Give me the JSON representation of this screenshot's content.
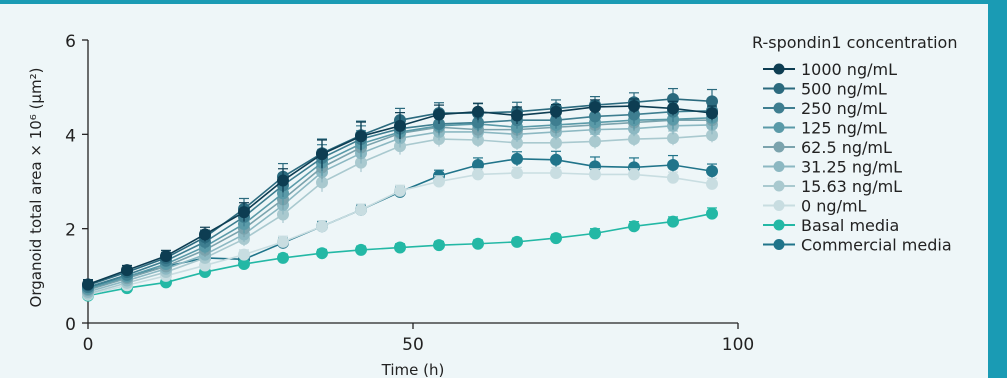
{
  "colors": {
    "background": "#eef6f8",
    "accent_bar": "#1a9bb4",
    "axis": "#222222",
    "errorbar": "#333333"
  },
  "chart_data": {
    "type": "line",
    "title": "",
    "xlabel": "Time (h)",
    "ylabel": "Organoid total area × 10⁶ (µm²)",
    "xlim": [
      0,
      100
    ],
    "ylim": [
      0,
      6
    ],
    "xticks": [
      0,
      50,
      100
    ],
    "yticks": [
      0,
      2,
      4,
      6
    ],
    "grid": false,
    "legend_title": "R-spondin1 concentration",
    "legend_position": "right",
    "x": [
      0,
      6,
      12,
      18,
      24,
      30,
      36,
      42,
      48,
      54,
      60,
      66,
      72,
      78,
      84,
      90,
      96
    ],
    "series": [
      {
        "name": "1000 ng/mL",
        "color": "#0d3d52",
        "values": [
          0.82,
          1.12,
          1.42,
          1.88,
          2.35,
          3.02,
          3.58,
          3.96,
          4.18,
          4.42,
          4.48,
          4.4,
          4.48,
          4.58,
          4.6,
          4.55,
          4.45
        ],
        "err": [
          0.1,
          0.1,
          0.12,
          0.15,
          0.2,
          0.25,
          0.3,
          0.3,
          0.28,
          0.2,
          0.18,
          0.18,
          0.15,
          0.15,
          0.15,
          0.15,
          0.15
        ]
      },
      {
        "name": "500 ng/mL",
        "color": "#2b6a7e",
        "values": [
          0.8,
          1.08,
          1.38,
          1.82,
          2.42,
          3.1,
          3.6,
          3.98,
          4.3,
          4.45,
          4.45,
          4.48,
          4.55,
          4.62,
          4.68,
          4.75,
          4.7
        ],
        "err": [
          0.1,
          0.1,
          0.12,
          0.15,
          0.22,
          0.28,
          0.3,
          0.3,
          0.25,
          0.22,
          0.2,
          0.2,
          0.18,
          0.18,
          0.2,
          0.22,
          0.25
        ]
      },
      {
        "name": "250 ng/mL",
        "color": "#3e7e90",
        "values": [
          0.76,
          1.02,
          1.32,
          1.72,
          2.25,
          2.92,
          3.5,
          3.9,
          4.12,
          4.22,
          4.25,
          4.3,
          4.3,
          4.38,
          4.42,
          4.48,
          4.5
        ],
        "err": [
          0.1,
          0.1,
          0.12,
          0.15,
          0.2,
          0.25,
          0.28,
          0.28,
          0.22,
          0.2,
          0.18,
          0.18,
          0.18,
          0.18,
          0.2,
          0.22,
          0.25
        ]
      },
      {
        "name": "125 ng/mL",
        "color": "#5a9aa8",
        "values": [
          0.72,
          0.98,
          1.25,
          1.62,
          2.1,
          2.75,
          3.4,
          3.8,
          4.05,
          4.18,
          4.22,
          4.15,
          4.2,
          4.25,
          4.3,
          4.32,
          4.35
        ],
        "err": [
          0.1,
          0.1,
          0.12,
          0.15,
          0.2,
          0.25,
          0.28,
          0.28,
          0.22,
          0.2,
          0.18,
          0.18,
          0.18,
          0.18,
          0.2,
          0.22,
          0.25
        ]
      },
      {
        "name": "62.5 ng/mL",
        "color": "#7ba3ad",
        "values": [
          0.7,
          0.95,
          1.2,
          1.55,
          2.0,
          2.62,
          3.3,
          3.72,
          4.02,
          4.15,
          4.1,
          4.1,
          4.15,
          4.2,
          4.25,
          4.3,
          4.3
        ],
        "err": [
          0.1,
          0.1,
          0.12,
          0.15,
          0.18,
          0.22,
          0.25,
          0.25,
          0.2,
          0.2,
          0.18,
          0.18,
          0.18,
          0.18,
          0.18,
          0.2,
          0.22
        ]
      },
      {
        "name": "31.25 ng/mL",
        "color": "#8cb8c2",
        "values": [
          0.66,
          0.9,
          1.15,
          1.45,
          1.88,
          2.5,
          3.2,
          3.6,
          3.92,
          4.05,
          4.05,
          4.0,
          4.05,
          4.1,
          4.12,
          4.18,
          4.2
        ],
        "err": [
          0.1,
          0.1,
          0.1,
          0.12,
          0.16,
          0.2,
          0.22,
          0.22,
          0.2,
          0.18,
          0.16,
          0.16,
          0.16,
          0.16,
          0.16,
          0.18,
          0.2
        ]
      },
      {
        "name": "15.63 ng/mL",
        "color": "#a9c9cf",
        "values": [
          0.62,
          0.85,
          1.08,
          1.38,
          1.78,
          2.3,
          2.98,
          3.4,
          3.75,
          3.9,
          3.88,
          3.82,
          3.82,
          3.85,
          3.9,
          3.92,
          3.98
        ],
        "err": [
          0.08,
          0.08,
          0.1,
          0.12,
          0.15,
          0.18,
          0.2,
          0.2,
          0.18,
          0.16,
          0.15,
          0.15,
          0.15,
          0.15,
          0.15,
          0.15,
          0.15
        ]
      },
      {
        "name": "0 ng/mL",
        "color": "#c8dde1",
        "values": [
          0.6,
          0.8,
          1.0,
          1.22,
          1.45,
          1.72,
          2.05,
          2.4,
          2.8,
          3.0,
          3.15,
          3.18,
          3.18,
          3.15,
          3.15,
          3.08,
          2.95
        ],
        "err": [
          0.08,
          0.08,
          0.08,
          0.1,
          0.1,
          0.12,
          0.12,
          0.12,
          0.12,
          0.12,
          0.12,
          0.12,
          0.12,
          0.12,
          0.12,
          0.12,
          0.12
        ]
      },
      {
        "name": "Basal media",
        "color": "#23b8a5",
        "values": [
          0.58,
          0.74,
          0.86,
          1.08,
          1.25,
          1.38,
          1.48,
          1.55,
          1.6,
          1.65,
          1.68,
          1.72,
          1.8,
          1.9,
          2.05,
          2.15,
          2.32
        ],
        "err": [
          0.05,
          0.05,
          0.06,
          0.07,
          0.08,
          0.08,
          0.08,
          0.08,
          0.08,
          0.08,
          0.08,
          0.08,
          0.08,
          0.1,
          0.1,
          0.1,
          0.12
        ]
      },
      {
        "name": "Commercial media",
        "color": "#20748a",
        "values": [
          0.75,
          0.98,
          1.2,
          1.38,
          1.35,
          1.7,
          2.05,
          2.4,
          2.78,
          3.12,
          3.35,
          3.48,
          3.46,
          3.32,
          3.3,
          3.35,
          3.22
        ],
        "err": [
          0.08,
          0.08,
          0.1,
          0.1,
          0.1,
          0.1,
          0.1,
          0.1,
          0.1,
          0.12,
          0.15,
          0.15,
          0.18,
          0.2,
          0.2,
          0.2,
          0.15
        ]
      }
    ]
  }
}
